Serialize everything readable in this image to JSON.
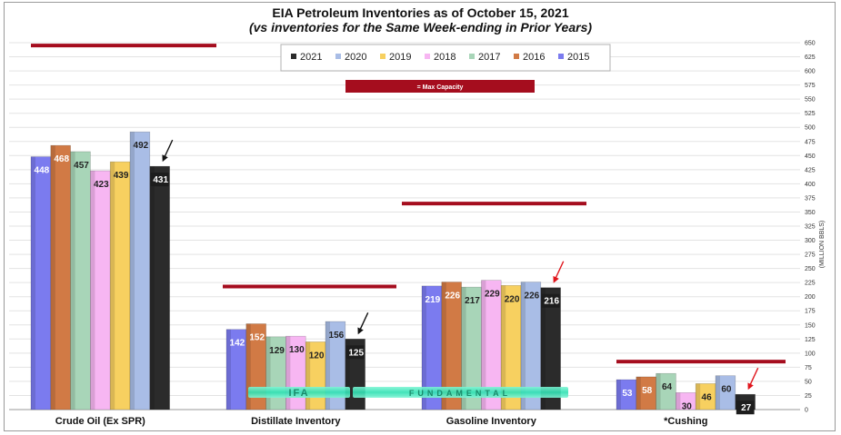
{
  "chart_data": {
    "type": "bar",
    "title": "EIA Petroleum Inventories as of October 15, 2021",
    "subtitle": "(vs  inventories for the Same Week-ending in Prior Years)",
    "ylabel": "(MILLION BBLS)",
    "ylim": [
      0,
      650
    ],
    "ytick_step": 25,
    "grid": true,
    "legend_position": "top-center",
    "categories": [
      "Crude Oil (Ex SPR)",
      "Distillate Inventory",
      "Gasoline Inventory",
      "*Cushing"
    ],
    "bar_order": [
      "2015",
      "2016",
      "2017",
      "2018",
      "2019",
      "2020",
      "2021"
    ],
    "legend_order": [
      "2021",
      "2020",
      "2019",
      "2018",
      "2017",
      "2016",
      "2015"
    ],
    "series": [
      {
        "name": "2015",
        "color": "#7b7bef",
        "values": [
          448,
          142,
          219,
          53
        ]
      },
      {
        "name": "2016",
        "color": "#d17a45",
        "values": [
          468,
          152,
          226,
          58
        ]
      },
      {
        "name": "2017",
        "color": "#a8d5b8",
        "values": [
          457,
          129,
          217,
          64
        ]
      },
      {
        "name": "2018",
        "color": "#f7b6f2",
        "values": [
          423,
          130,
          229,
          30
        ]
      },
      {
        "name": "2019",
        "color": "#f7d060",
        "values": [
          439,
          120,
          220,
          46
        ]
      },
      {
        "name": "2020",
        "color": "#a9bde6",
        "values": [
          492,
          156,
          226,
          60
        ]
      },
      {
        "name": "2021",
        "color": "#2b2b2b",
        "values": [
          431,
          125,
          216,
          27
        ]
      }
    ],
    "max_capacity": {
      "label": "= Max Capacity",
      "color": "#a50d1e",
      "values": [
        645,
        218,
        365,
        85
      ]
    },
    "highlight_arrows": [
      {
        "category": "Crude Oil (Ex SPR)",
        "color": "#111111"
      },
      {
        "category": "Distillate Inventory",
        "color": "#111111"
      },
      {
        "category": "Gasoline Inventory",
        "color": "#e0151c"
      },
      {
        "category": "*Cushing",
        "color": "#e0151c"
      }
    ],
    "watermark": "IFA FUNDAMENTAL"
  }
}
